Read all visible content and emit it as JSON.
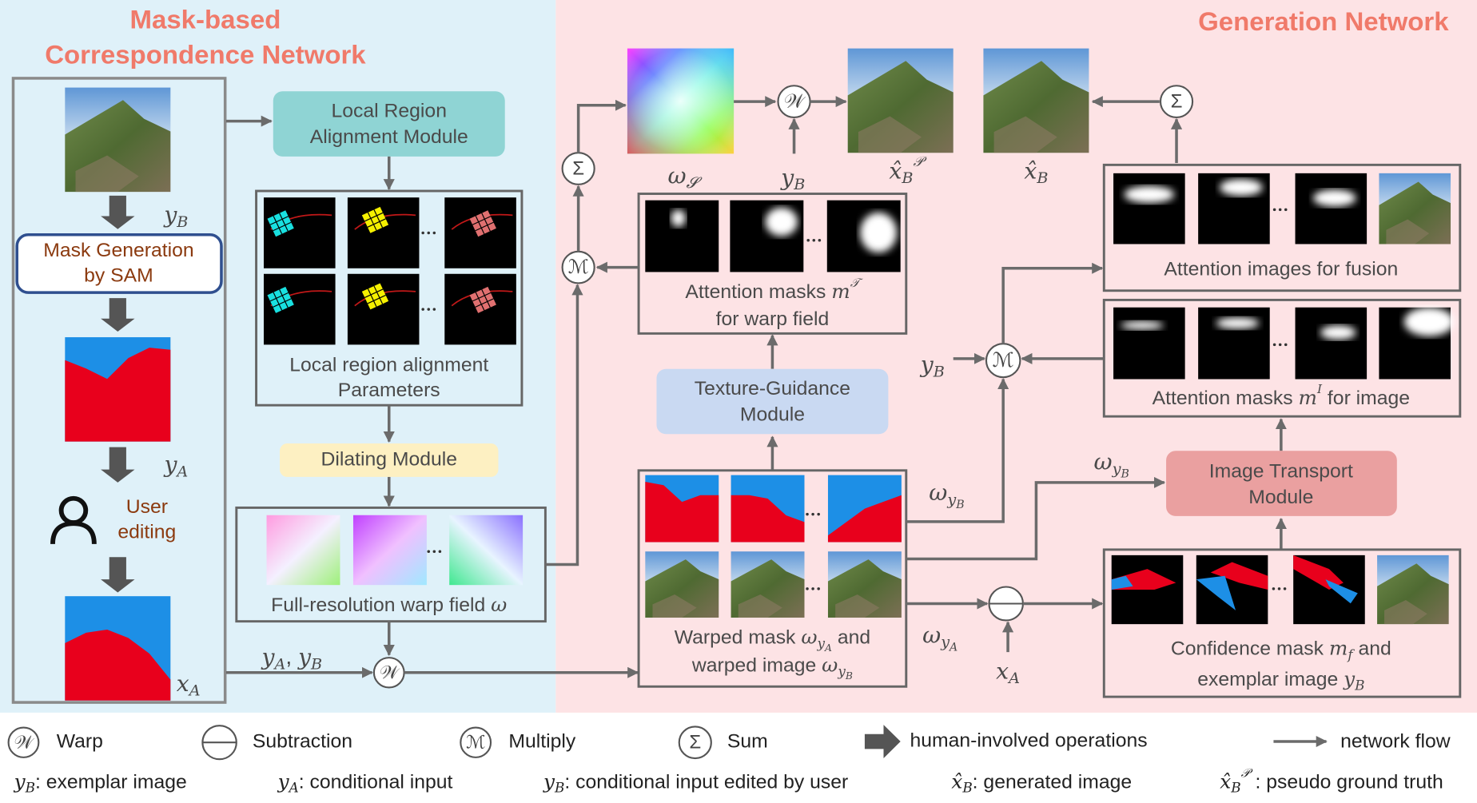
{
  "left_title": [
    "Mask-based",
    "Correspondence Network"
  ],
  "right_title": "Generation Network",
  "left_column": {
    "y_B": [
      {
        "base": "y",
        "sub": "B"
      }
    ],
    "sam": [
      "Mask Generation",
      "by SAM"
    ],
    "y_A": [
      {
        "base": "y",
        "sub": "A"
      }
    ],
    "user": [
      "User",
      "editing"
    ],
    "x_A": [
      {
        "base": "x",
        "sub": "A"
      }
    ]
  },
  "local_module": [
    "Local Region",
    "Alignment Module"
  ],
  "param_caption": [
    "Local region alignment",
    "Parameters"
  ],
  "dilating": "Dilating Module",
  "warp_caption": [
    "Full-resolution warp field ",
    {
      "base": "ω"
    }
  ],
  "warp_inputs": [
    {
      "base": "y",
      "sub": "A"
    },
    ", ",
    {
      "base": "y",
      "sub": "B"
    }
  ],
  "omega_s": [
    {
      "base": "ω",
      "sub": "𝓢"
    }
  ],
  "y_B_top": [
    {
      "base": "y",
      "sub": "B"
    }
  ],
  "xhat_p": [
    {
      "base": "x̂",
      "sub": "B",
      "sup": "𝒫"
    }
  ],
  "xhat": [
    {
      "base": "x̂",
      "sub": "B"
    }
  ],
  "att_warp_caption": [
    [
      "Attention masks ",
      {
        "base": "m",
        "sup": "𝒯"
      }
    ],
    [
      "for warp field"
    ]
  ],
  "texture": [
    "Texture-Guidance",
    "Module"
  ],
  "warped_caption": [
    [
      "Warped mask ",
      {
        "base": "ω",
        "sub": "y",
        "subsub": "A"
      },
      " and"
    ],
    [
      "warped image ",
      {
        "base": "ω",
        "sub": "y",
        "subsub": "B"
      }
    ]
  ],
  "fusion_caption": "Attention images for fusion",
  "att_image_caption": [
    "Attention masks ",
    {
      "base": "m",
      "sup": "I"
    },
    " for image"
  ],
  "transport": [
    "Image Transport",
    "Module"
  ],
  "conf_caption": [
    [
      "Confidence mask ",
      {
        "base": "m",
        "sub": "f"
      },
      " and"
    ],
    [
      "exemplar image ",
      {
        "base": "y",
        "sub": "B"
      }
    ]
  ],
  "y_B_mult": [
    {
      "base": "y",
      "sub": "B"
    }
  ],
  "omega_yB_1": [
    {
      "base": "ω",
      "sub": "y",
      "subsub": "B"
    }
  ],
  "omega_yB_2": [
    {
      "base": "ω",
      "sub": "y",
      "subsub": "B"
    }
  ],
  "omega_yA": [
    {
      "base": "ω",
      "sub": "y",
      "subsub": "A"
    }
  ],
  "x_A_sub": [
    {
      "base": "x",
      "sub": "A"
    }
  ],
  "symbols": {
    "warp": "𝒲",
    "multiply": "ℳ",
    "sum": "Σ"
  },
  "legend": {
    "items": [
      "Warp",
      "Subtraction",
      "Multiply",
      "Sum",
      "human-involved operations",
      "network flow"
    ],
    "notes": [
      [
        {
          "base": "y",
          "sub": "B"
        },
        ": exemplar image"
      ],
      [
        {
          "base": "y",
          "sub": "A"
        },
        ": conditional input"
      ],
      [
        {
          "base": "y",
          "sub": "B"
        },
        ": conditional input edited by user"
      ],
      [
        {
          "base": "x̂",
          "sub": "B"
        },
        ": generated image"
      ],
      [
        {
          "base": "x̂",
          "sub": "B",
          "sup": "𝒫"
        },
        " : pseudo ground truth"
      ]
    ]
  }
}
